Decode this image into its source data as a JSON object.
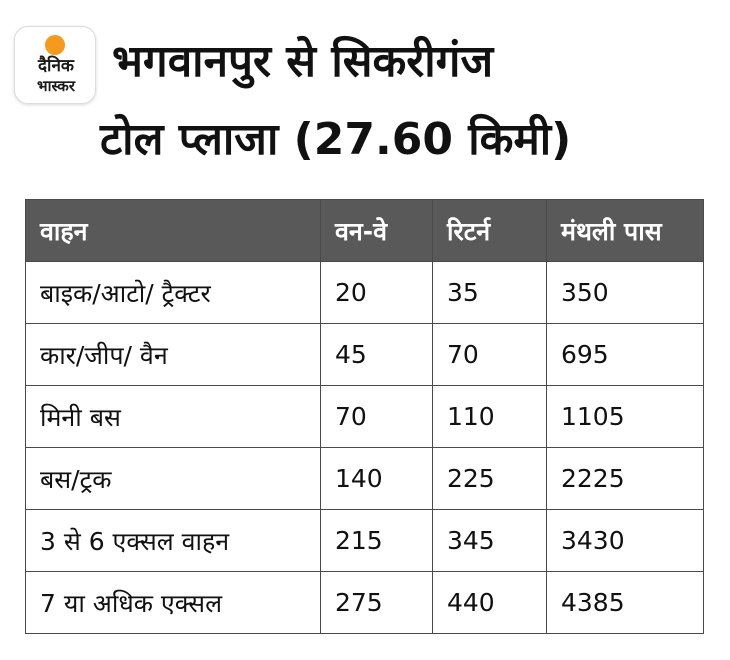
{
  "logo": {
    "line1": "दैनिक",
    "line2": "भास्कर",
    "sun_color": "#f59a1f"
  },
  "title": {
    "line1": "भगवानपुर से सिकरीगंज",
    "line2": "टोल प्लाजा (27.60 किमी)"
  },
  "table": {
    "header_color": "#595959",
    "columns": [
      "वाहन",
      "वन-वे",
      "रिटर्न",
      "मंथली पास"
    ],
    "rows": [
      [
        "बाइक/आटो/ ट्रैक्टर",
        "20",
        "35",
        "350"
      ],
      [
        "कार/जीप/ वैन",
        "45",
        "70",
        "695"
      ],
      [
        "मिनी बस",
        "70",
        "110",
        "1105"
      ],
      [
        "बस/ट्रक",
        "140",
        "225",
        "2225"
      ],
      [
        "3 से 6 एक्सल वाहन",
        "215",
        "345",
        "3430"
      ],
      [
        "7 या अधिक एक्सल",
        "275",
        "440",
        "4385"
      ]
    ]
  }
}
